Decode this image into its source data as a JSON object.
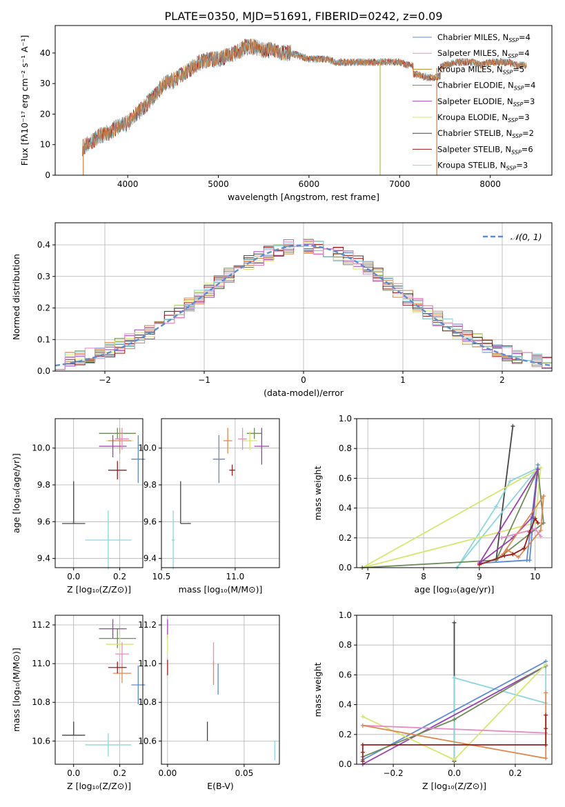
{
  "title": "PLATE=0350, MJD=51691, FIBERID=0242, z=0.09",
  "model_colors": [
    "#5b8bd4",
    "#e0884f",
    "#6d8b57",
    "#d07f3a",
    "#9b3fae",
    "#d7e66b",
    "#444444",
    "#a01818",
    "#8ad6dc",
    "#e78ac3"
  ],
  "chart_data": [
    {
      "type": "line",
      "title": "PLATE=0350, MJD=51691, FIBERID=0242, z=0.09",
      "xlabel": "wavelength [Angstrom, rest frame]",
      "ylabel": "Flux [fλ10⁻¹⁷ erg cm⁻² s⁻¹ A⁻¹]",
      "xlim": [
        3200,
        8680
      ],
      "ylim": [
        0,
        49
      ],
      "xticks": [
        4000,
        5000,
        6000,
        7000,
        8000
      ],
      "yticks": [
        0,
        10,
        20,
        30,
        40
      ],
      "grid": false,
      "legend_position": "top-right",
      "legend": [
        {
          "label": "Chabrier MILES, N",
          "sub": "SSP",
          "tail": "=4",
          "color": "#5b8bd4"
        },
        {
          "label": "Salpeter MILES, N",
          "sub": "SSP",
          "tail": "=4",
          "color": "#e78ac3"
        },
        {
          "label": "Kroupa MILES, N",
          "sub": "SSP",
          "tail": "=5",
          "color": "#c0871f"
        },
        {
          "label": "Chabrier ELODIE, N",
          "sub": "SSP",
          "tail": "=4",
          "color": "#6d8b57"
        },
        {
          "label": "Salpeter ELODIE, N",
          "sub": "SSP",
          "tail": "=3",
          "color": "#9b3fae"
        },
        {
          "label": "Kroupa ELODIE, N",
          "sub": "SSP",
          "tail": "=3",
          "color": "#d7e66b"
        },
        {
          "label": "Chabrier STELIB, N",
          "sub": "SSP",
          "tail": "=2",
          "color": "#444444"
        },
        {
          "label": "Salpeter STELIB, N",
          "sub": "SSP",
          "tail": "=6",
          "color": "#a01818"
        },
        {
          "label": "Kroupa STELIB, N",
          "sub": "SSP",
          "tail": "=3",
          "color": "#8ad6dc"
        }
      ],
      "continuum": {
        "x": [
          3500,
          3600,
          3700,
          3800,
          3900,
          4000,
          4100,
          4200,
          4300,
          4400,
          4500,
          4600,
          4700,
          4800,
          4900,
          5000,
          5100,
          5200,
          5300,
          5400,
          5500,
          5600,
          5700,
          5800,
          5900,
          6000,
          6100,
          6200,
          6300,
          6400,
          6500,
          6600,
          6700,
          6800,
          6900,
          7000,
          7100,
          7200,
          7300,
          7400,
          7500,
          7600,
          7700,
          7800,
          7900,
          8000,
          8100,
          8200,
          8300,
          8400
        ],
        "y": [
          9,
          11,
          13,
          14,
          16,
          17,
          20,
          23,
          26,
          30,
          31,
          33,
          35,
          37,
          38,
          38,
          39,
          40,
          42,
          42,
          41,
          41,
          40,
          40,
          39,
          38,
          38,
          38,
          37,
          37,
          37,
          37,
          37,
          37,
          37,
          37,
          36,
          36,
          35,
          35,
          36,
          37,
          37,
          37,
          36,
          37,
          37,
          37,
          36,
          36
        ]
      },
      "noise_amplitude": 2.5,
      "spikes": [
        {
          "x": 3510,
          "y": 0,
          "color": "#d07f3a"
        },
        {
          "x": 6785,
          "y": 0,
          "color": "#b0c040"
        },
        {
          "x": 7410,
          "y": 0,
          "color": "#d07f3a"
        }
      ]
    },
    {
      "type": "histogram",
      "xlabel": "(data-model)/error",
      "ylabel": "Normed distribution",
      "xlim": [
        -2.5,
        2.5
      ],
      "ylim": [
        0,
        0.47
      ],
      "xticks": [
        -2,
        -1,
        0,
        1,
        2
      ],
      "yticks": [
        0.0,
        0.1,
        0.2,
        0.3,
        0.4
      ],
      "grid": true,
      "bin_width": 0.1,
      "legend": [
        {
          "label": "𝒩(0, 1)",
          "color": "#5b8bd4",
          "style": "dashed"
        }
      ],
      "legend_position": "top-right"
    },
    {
      "type": "scatter",
      "xlabel": "Z [log₁₀(Z/Z⊙)]",
      "ylabel": "age  [log₁₀(age/yr)]",
      "xlim": [
        -0.08,
        0.3
      ],
      "ylim": [
        9.35,
        10.16
      ],
      "xticks": [
        0.0,
        0.2
      ],
      "yticks": [
        9.4,
        9.6,
        9.8,
        10.0
      ],
      "grid": true,
      "points": [
        {
          "x": 0.0,
          "y": 9.59,
          "xerr": 0.05,
          "yerr": [
            0.0,
            0.23
          ],
          "color": "#444444"
        },
        {
          "x": 0.15,
          "y": 9.5,
          "xerr": 0.1,
          "yerr": 0.16,
          "color": "#8ad6dc"
        },
        {
          "x": 0.19,
          "y": 10.08,
          "xerr": 0.08,
          "yerr": 0.03,
          "color": "#6d8b57"
        },
        {
          "x": 0.2,
          "y": 10.04,
          "xerr": 0.06,
          "yerr": 0.05,
          "color": "#d7e66b"
        },
        {
          "x": 0.2,
          "y": 10.04,
          "xerr": 0.05,
          "yerr": 0.07,
          "color": "#e0884f"
        },
        {
          "x": 0.17,
          "y": 10.01,
          "xerr": 0.06,
          "yerr": 0.06,
          "color": "#9b3fae"
        },
        {
          "x": 0.19,
          "y": 9.88,
          "xerr": 0.04,
          "yerr": 0.05,
          "color": "#a01818"
        },
        {
          "x": 0.21,
          "y": 10.05,
          "xerr": 0.03,
          "yerr": 0.06,
          "color": "#e78ac3"
        },
        {
          "x": 0.28,
          "y": 9.94,
          "xerr": 0.03,
          "yerr": 0.13,
          "color": "#5b8bd4"
        }
      ]
    },
    {
      "type": "scatter",
      "xlabel": "mass [log₁₀(M/M⊙)]",
      "ylabel": "",
      "xlim": [
        10.5,
        11.3
      ],
      "ylim": [
        9.35,
        10.16
      ],
      "xticks": [
        10.5,
        11.0
      ],
      "yticks": [
        9.4,
        9.6,
        9.8,
        10.0
      ],
      "grid": true,
      "points": [
        {
          "x": 10.63,
          "y": 9.59,
          "xerr": [
            0.0,
            0.07
          ],
          "yerr": [
            0.0,
            0.23
          ],
          "color": "#444444"
        },
        {
          "x": 10.58,
          "y": 9.5,
          "xerr": 0.01,
          "yerr": 0.16,
          "color": "#8ad6dc"
        },
        {
          "x": 11.13,
          "y": 10.08,
          "xerr": 0.05,
          "yerr": 0.03,
          "color": "#6d8b57"
        },
        {
          "x": 11.1,
          "y": 10.04,
          "xerr": 0.05,
          "yerr": 0.05,
          "color": "#d7e66b"
        },
        {
          "x": 10.95,
          "y": 10.04,
          "xerr": 0.03,
          "yerr": 0.07,
          "color": "#e0884f"
        },
        {
          "x": 11.18,
          "y": 10.01,
          "xerr": 0.05,
          "yerr": 0.1,
          "color": "#9b3fae"
        },
        {
          "x": 10.98,
          "y": 9.88,
          "xerr": 0.02,
          "yerr": 0.03,
          "color": "#a01818"
        },
        {
          "x": 11.05,
          "y": 10.05,
          "xerr": 0.03,
          "yerr": 0.06,
          "color": "#e78ac3"
        },
        {
          "x": 10.89,
          "y": 9.94,
          "xerr": 0.04,
          "yerr": 0.13,
          "color": "#5b8bd4"
        }
      ]
    },
    {
      "type": "line",
      "xlabel": "age  [log₁₀(age/yr)]",
      "ylabel": "mass weight",
      "xlim": [
        6.8,
        10.3
      ],
      "ylim": [
        0,
        1.0
      ],
      "xticks": [
        7,
        8,
        9,
        10
      ],
      "yticks": [
        0.0,
        0.2,
        0.4,
        0.6,
        0.8,
        1.0
      ],
      "grid": true,
      "series": [
        {
          "color": "#444444",
          "x": [
            9.3,
            9.6,
            9.3
          ],
          "y": [
            0.05,
            0.95,
            0.05
          ]
        },
        {
          "color": "#8ad6dc",
          "x": [
            8.6,
            9.3,
            9.55,
            10.05,
            8.6
          ],
          "y": [
            0.0,
            0.41,
            0.58,
            0.67,
            0.0
          ]
        },
        {
          "color": "#d7e66b",
          "x": [
            6.9,
            10.0,
            10.1,
            6.9
          ],
          "y": [
            0.0,
            0.3,
            0.67,
            0.0
          ]
        },
        {
          "color": "#6d8b57",
          "x": [
            6.9,
            9.3,
            10.05,
            10.15,
            9.3,
            6.9
          ],
          "y": [
            0.0,
            0.05,
            0.66,
            0.3,
            0.05,
            0.0
          ]
        },
        {
          "color": "#5b8bd4",
          "x": [
            9.0,
            9.85,
            10.05,
            9.9,
            9.0
          ],
          "y": [
            0.03,
            0.05,
            0.69,
            0.05,
            0.03
          ]
        },
        {
          "color": "#9b3fae",
          "x": [
            9.0,
            9.6,
            9.95,
            10.05,
            9.0
          ],
          "y": [
            0.03,
            0.2,
            0.34,
            0.66,
            0.03
          ]
        },
        {
          "color": "#e0884f",
          "x": [
            9.4,
            9.5,
            9.7,
            10.1,
            10.15,
            9.4
          ],
          "y": [
            0.08,
            0.12,
            0.07,
            0.25,
            0.48,
            0.08
          ]
        },
        {
          "color": "#e78ac3",
          "x": [
            9.4,
            10.0,
            10.1
          ],
          "y": [
            0.2,
            0.26,
            0.21
          ]
        },
        {
          "color": "#a01818",
          "x": [
            9.0,
            9.45,
            9.6,
            9.8,
            9.9,
            10.0,
            10.05
          ],
          "y": [
            0.02,
            0.08,
            0.09,
            0.13,
            0.24,
            0.33,
            0.3
          ]
        }
      ]
    },
    {
      "type": "scatter",
      "xlabel": "Z [log₁₀(Z/Z⊙)]",
      "ylabel": "mass [log₁₀(M/M⊙)]",
      "xlim": [
        -0.08,
        0.3
      ],
      "ylim": [
        10.48,
        11.25
      ],
      "xticks": [
        0.0,
        0.2
      ],
      "yticks": [
        10.6,
        10.8,
        11.0,
        11.2
      ],
      "grid": true,
      "points": [
        {
          "x": 0.0,
          "y": 10.63,
          "xerr": 0.05,
          "yerr": [
            0.0,
            0.07
          ],
          "color": "#444444"
        },
        {
          "x": 0.15,
          "y": 10.58,
          "xerr": 0.1,
          "yerr": 0.06,
          "color": "#8ad6dc"
        },
        {
          "x": 0.19,
          "y": 11.13,
          "xerr": 0.08,
          "yerr": 0.05,
          "color": "#6d8b57"
        },
        {
          "x": 0.2,
          "y": 11.1,
          "xerr": 0.06,
          "yerr": 0.05,
          "color": "#d7e66b"
        },
        {
          "x": 0.21,
          "y": 10.95,
          "xerr": 0.04,
          "yerr": 0.05,
          "color": "#e0884f"
        },
        {
          "x": 0.17,
          "y": 11.18,
          "xerr": 0.06,
          "yerr": 0.05,
          "color": "#9b3fae"
        },
        {
          "x": 0.19,
          "y": 10.98,
          "xerr": 0.04,
          "yerr": 0.03,
          "color": "#a01818"
        },
        {
          "x": 0.21,
          "y": 11.05,
          "xerr": 0.03,
          "yerr": 0.06,
          "color": "#e78ac3"
        },
        {
          "x": 0.28,
          "y": 10.89,
          "xerr": 0.03,
          "yerr": 0.1,
          "color": "#5b8bd4"
        }
      ]
    },
    {
      "type": "scatter",
      "xlabel": "E(B-V)",
      "ylabel": "",
      "xlim": [
        -0.004,
        0.073
      ],
      "ylim": [
        10.48,
        11.25
      ],
      "xticks": [
        0.0,
        0.05
      ],
      "yticks": [
        10.6,
        10.8,
        11.0,
        11.2
      ],
      "grid": true,
      "points": [
        {
          "x": 0.0,
          "y": 11.18,
          "xerr": 0.0,
          "yerr": 0.05,
          "color": "#9b3fae"
        },
        {
          "x": 0.0,
          "y": 11.1,
          "xerr": 0.0,
          "yerr": 0.05,
          "color": "#d7e66b"
        },
        {
          "x": 0.0,
          "y": 10.98,
          "xerr": 0.0,
          "yerr": 0.04,
          "color": "#a01818"
        },
        {
          "x": 0.026,
          "y": 10.65,
          "xerr": 0.0,
          "yerr": 0.05,
          "color": "#444444"
        },
        {
          "x": 0.03,
          "y": 11.05,
          "xerr": 0.0,
          "yerr": 0.06,
          "color": "#e78ac3"
        },
        {
          "x": 0.03,
          "y": 10.95,
          "xerr": 0.0,
          "yerr": 0.06,
          "color": "#e0884f"
        },
        {
          "x": 0.033,
          "y": 10.92,
          "xerr": 0.0,
          "yerr": 0.08,
          "color": "#5b8bd4"
        },
        {
          "x": 0.07,
          "y": 10.55,
          "xerr": 0.0,
          "yerr": 0.05,
          "color": "#8ad6dc"
        }
      ]
    },
    {
      "type": "line",
      "xlabel": "Z [log₁₀(Z/Z⊙)]",
      "ylabel": "mass weight",
      "xlim": [
        -0.32,
        0.32
      ],
      "ylim": [
        0,
        1.0
      ],
      "xticks": [
        -0.2,
        0.0,
        0.2
      ],
      "yticks": [
        0.0,
        0.2,
        0.4,
        0.6,
        0.8,
        1.0
      ],
      "grid": true,
      "series": [
        {
          "color": "#444444",
          "x": [
            0.0,
            0.0
          ],
          "y": [
            0.02,
            0.95
          ]
        },
        {
          "color": "#8ad6dc",
          "x": [
            0.0,
            0.0,
            0.3,
            0.3
          ],
          "y": [
            0.03,
            0.58,
            0.41,
            0.67
          ]
        },
        {
          "color": "#5b8bd4",
          "x": [
            -0.3,
            0.3
          ],
          "y": [
            0.03,
            0.69
          ]
        },
        {
          "color": "#9b3fae",
          "x": [
            -0.3,
            0.3
          ],
          "y": [
            0.0,
            0.66
          ]
        },
        {
          "color": "#6d8b57",
          "x": [
            -0.3,
            0.0,
            0.3
          ],
          "y": [
            0.05,
            0.3,
            0.66
          ]
        },
        {
          "color": "#d7e66b",
          "x": [
            -0.3,
            0.0,
            0.3
          ],
          "y": [
            0.32,
            0.03,
            0.67
          ]
        },
        {
          "color": "#e78ac3",
          "x": [
            -0.3,
            0.3
          ],
          "y": [
            0.26,
            0.21
          ]
        },
        {
          "color": "#e0884f",
          "x": [
            -0.3,
            0.3,
            0.3
          ],
          "y": [
            0.26,
            0.04,
            0.48
          ]
        },
        {
          "color": "#a01818",
          "x": [
            -0.3,
            -0.3,
            -0.3,
            0.3,
            0.3,
            0.3
          ],
          "y": [
            0.02,
            0.08,
            0.13,
            0.13,
            0.24,
            0.33
          ]
        }
      ]
    }
  ]
}
